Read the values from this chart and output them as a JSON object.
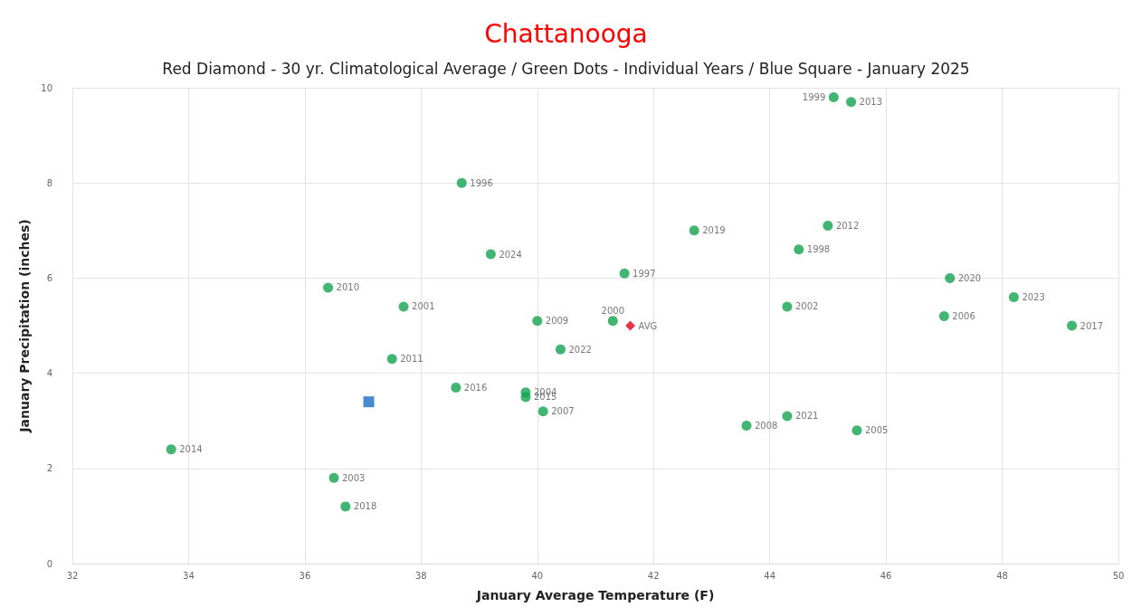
{
  "chart_data": {
    "type": "scatter",
    "title": "Chattanooga",
    "subtitle": "Red Diamond - 30 yr. Climatological Average / Green Dots - Individual Years / Blue Square - January 2025",
    "xlabel": "January Average Temperature (F)",
    "ylabel": "January Precipitation (inches)",
    "xlim": [
      32,
      50
    ],
    "xticks": [
      32,
      34,
      36,
      38,
      40,
      42,
      44,
      46,
      48,
      50
    ],
    "ylim": [
      0,
      10
    ],
    "yticks": [
      0,
      2,
      4,
      6,
      8,
      10
    ],
    "grid": true,
    "series": [
      {
        "color": "#12a34e",
        "marker": "circle",
        "x": [
          33.7,
          36.5,
          36.7,
          36.4,
          37.5,
          37.7,
          38.7,
          39.2,
          38.6,
          39.8,
          39.8,
          40.0,
          40.1,
          40.4,
          41.3,
          41.5,
          42.7,
          45.1,
          45.4,
          45.0,
          44.5,
          44.3,
          43.6,
          44.3,
          45.5,
          47.1,
          47.0,
          48.2,
          49.2
        ],
        "values": [
          2.4,
          1.8,
          1.2,
          5.8,
          4.3,
          5.4,
          8.0,
          6.5,
          3.7,
          3.6,
          3.5,
          5.1,
          3.2,
          4.5,
          5.1,
          6.1,
          7.0,
          9.8,
          9.7,
          7.1,
          6.6,
          5.4,
          2.9,
          3.1,
          2.8,
          6.0,
          5.2,
          5.6,
          5.0
        ]
      },
      {
        "color": "#e0001b",
        "marker": "diamond",
        "x": [
          41.6
        ],
        "values": [
          5.0
        ]
      },
      {
        "color": "#1a6cc4",
        "marker": "square",
        "x": [
          37.1
        ],
        "values": [
          3.4
        ]
      }
    ],
    "annotations": [
      {
        "text": "2014",
        "x": 33.7,
        "y": 2.4
      },
      {
        "text": "2003",
        "x": 36.5,
        "y": 1.8
      },
      {
        "text": "2018",
        "x": 36.7,
        "y": 1.2
      },
      {
        "text": "2010",
        "x": 36.4,
        "y": 5.8
      },
      {
        "text": "2011",
        "x": 37.5,
        "y": 4.3
      },
      {
        "text": "2001",
        "x": 37.7,
        "y": 5.4
      },
      {
        "text": "1996",
        "x": 38.7,
        "y": 8.0
      },
      {
        "text": "2024",
        "x": 39.2,
        "y": 6.5
      },
      {
        "text": "2016",
        "x": 38.6,
        "y": 3.7
      },
      {
        "text": "2004",
        "x": 39.8,
        "y": 3.6
      },
      {
        "text": "2015",
        "x": 39.8,
        "y": 3.5
      },
      {
        "text": "2009",
        "x": 40.0,
        "y": 5.1
      },
      {
        "text": "2007",
        "x": 40.1,
        "y": 3.2
      },
      {
        "text": "2022",
        "x": 40.4,
        "y": 4.5
      },
      {
        "text": "2000",
        "x": 41.3,
        "y": 5.1
      },
      {
        "text": "1997",
        "x": 41.5,
        "y": 6.1
      },
      {
        "text": "2019",
        "x": 42.7,
        "y": 7.0
      },
      {
        "text": "1999",
        "x": 45.1,
        "y": 9.8
      },
      {
        "text": "2013",
        "x": 45.4,
        "y": 9.7
      },
      {
        "text": "2012",
        "x": 45.0,
        "y": 7.1
      },
      {
        "text": "1998",
        "x": 44.5,
        "y": 6.6
      },
      {
        "text": "2002",
        "x": 44.3,
        "y": 5.4
      },
      {
        "text": "2008",
        "x": 43.6,
        "y": 2.9
      },
      {
        "text": "2021",
        "x": 44.3,
        "y": 3.1
      },
      {
        "text": "2005",
        "x": 45.5,
        "y": 2.8
      },
      {
        "text": "2020",
        "x": 47.1,
        "y": 6.0
      },
      {
        "text": "2006",
        "x": 47.0,
        "y": 5.2
      },
      {
        "text": "2023",
        "x": 48.2,
        "y": 5.6
      },
      {
        "text": "2017",
        "x": 49.2,
        "y": 5.0
      },
      {
        "text": "AVG",
        "x": 41.6,
        "y": 5.0
      }
    ]
  }
}
